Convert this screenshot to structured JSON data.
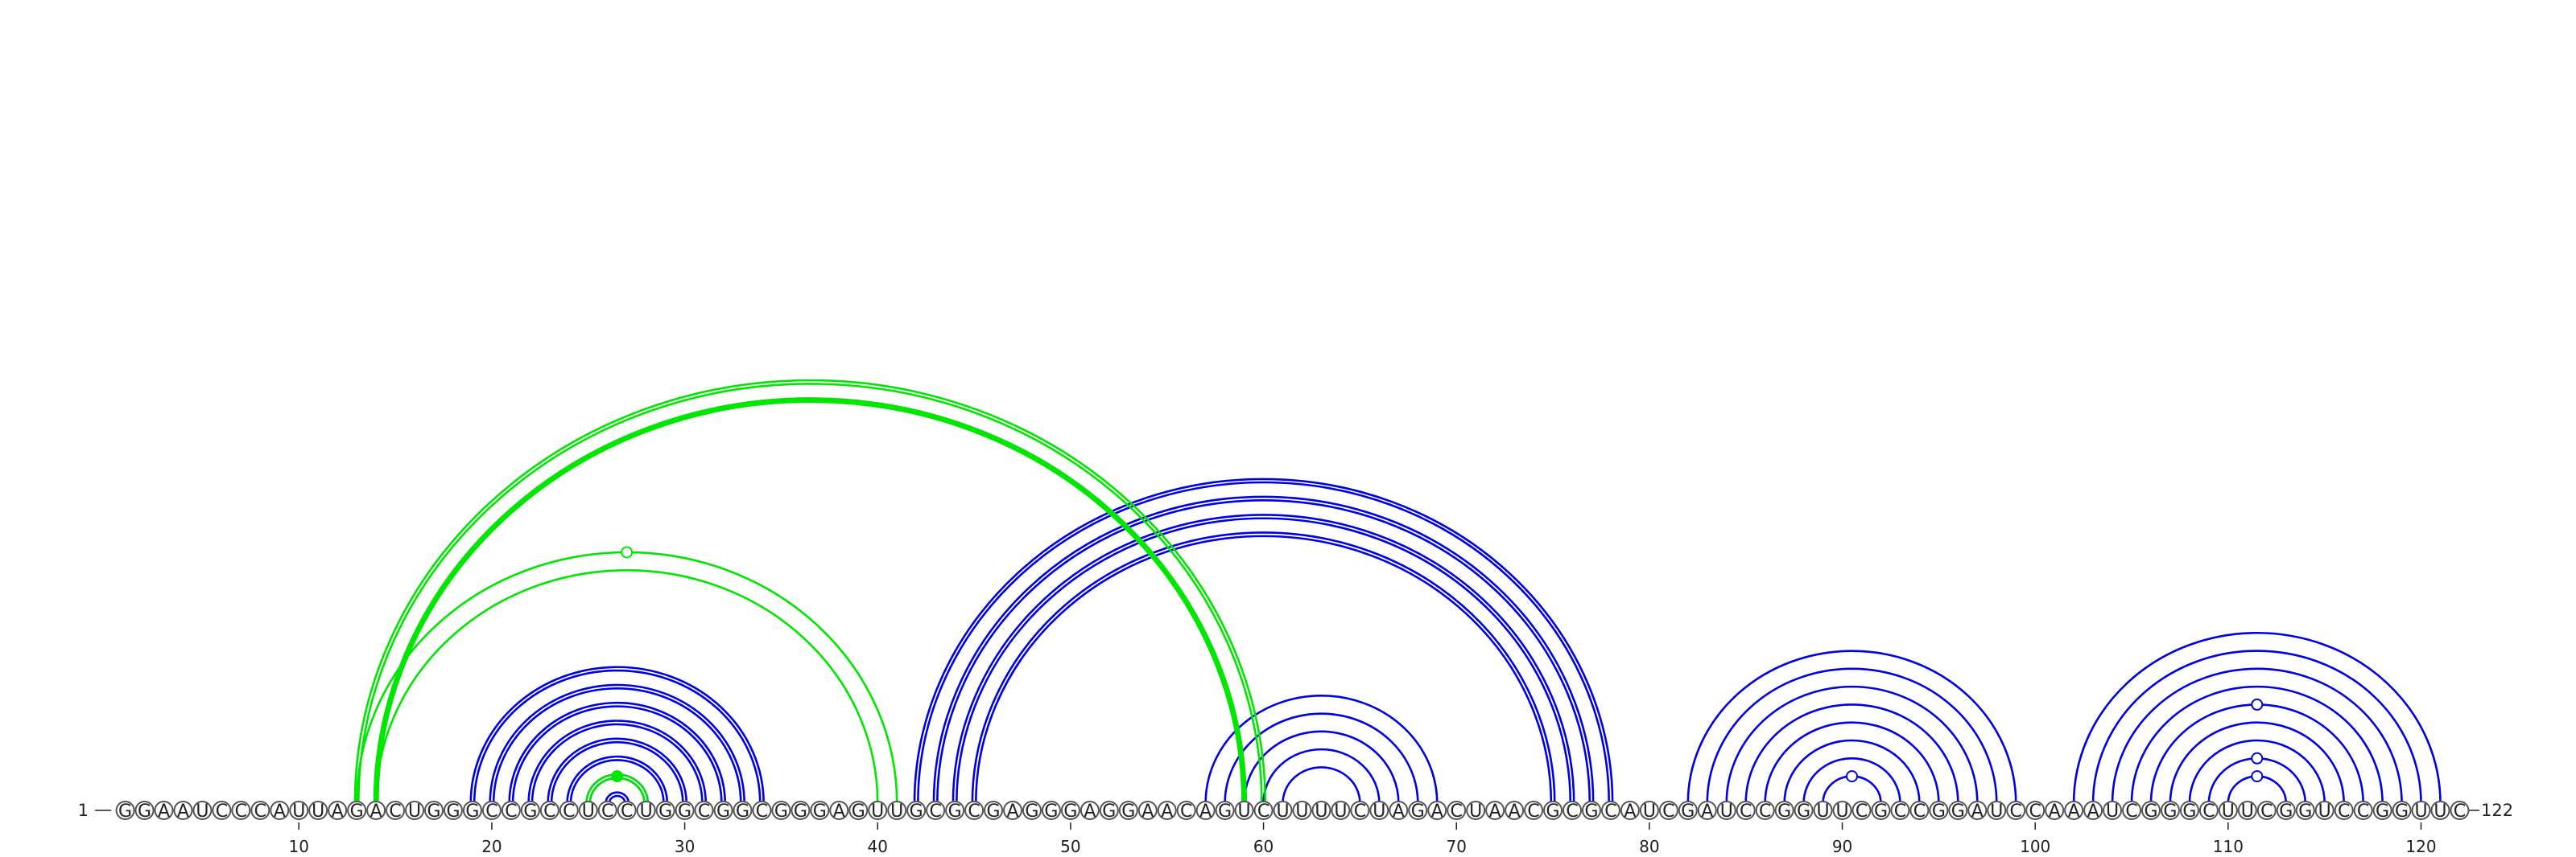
{
  "chart_data": {
    "type": "arc-diagram",
    "sequence": "GGAAUCCCAUUAGACUGGGCCGCCUCCUGGCGGCGGGAGUUGCGCGAGGGAGGAACAGUCUUUUCUAGACUAACGCGCAUCGAUCCGGUUCGCCGGAUCCAAAUCGGGCUUCGGUCCGGUUC",
    "start_label": "1",
    "end_label": "122",
    "ticks": [
      10,
      20,
      30,
      40,
      50,
      60,
      70,
      80,
      90,
      100,
      110,
      120
    ],
    "colors": {
      "blue": "#0000e6",
      "green": "#00e600"
    },
    "helices": [
      {
        "color": "blue",
        "i": 19,
        "j": 34,
        "n": 8,
        "thick": true
      },
      {
        "color": "blue",
        "i": 42,
        "j": 78,
        "n": 4,
        "thick": true
      },
      {
        "color": "blue",
        "i": 57,
        "j": 69,
        "n": 5,
        "thick": false
      },
      {
        "color": "blue",
        "i": 82,
        "j": 99,
        "n": 8,
        "thick": false
      },
      {
        "color": "blue",
        "i": 102,
        "j": 121,
        "n": 9,
        "thick": false
      },
      {
        "color": "green",
        "i": 25,
        "j": 28,
        "n": 1,
        "thick": true
      },
      {
        "color": "green",
        "i": 13,
        "j": 60,
        "n": 2,
        "thick": true
      },
      {
        "color": "green",
        "i": 14,
        "j": 59,
        "n": 1,
        "thick": false
      },
      {
        "color": "green",
        "i": 13,
        "j": 41,
        "n": 2,
        "thick": false
      }
    ],
    "markers": [
      {
        "color": "green",
        "x": 26.5,
        "arc": [
          25,
          28
        ],
        "filled": true
      },
      {
        "color": "green",
        "x": 27,
        "arc": [
          13,
          41
        ],
        "filled": false
      },
      {
        "color": "blue",
        "x": 90.5,
        "arc": [
          89,
          92
        ],
        "filled": false
      },
      {
        "color": "blue",
        "x": 111.5,
        "arc": [
          110,
          113
        ],
        "filled": false
      },
      {
        "color": "blue",
        "x": 111.5,
        "arc": [
          109,
          114
        ],
        "filled": false
      },
      {
        "color": "blue",
        "x": 111.5,
        "arc": [
          106,
          117
        ],
        "filled": false
      }
    ]
  }
}
